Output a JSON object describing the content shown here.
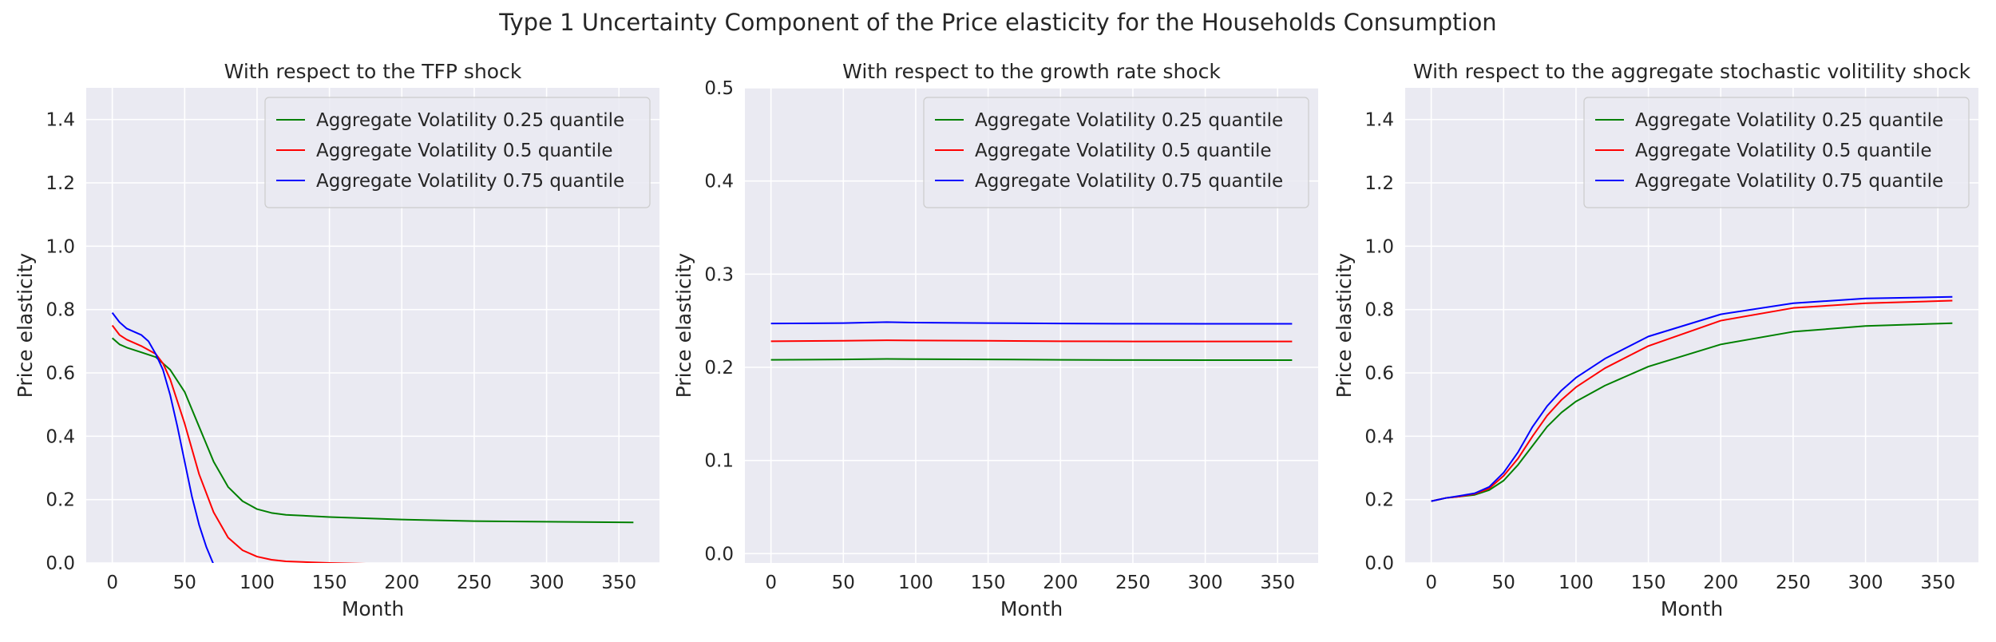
{
  "figure": {
    "suptitle": "Type 1 Uncertainty Component of the Price elasticity for the Households Consumption"
  },
  "style": {
    "plot_bg": "#eaeaf2",
    "grid_color": "#ffffff",
    "text_color": "#262626",
    "legend_bg": "#eaeaf2",
    "legend_border": "#cccccc"
  },
  "chart_data": [
    {
      "type": "line",
      "title": "With respect to the TFP shock",
      "xlabel": "Month",
      "ylabel": "Price elasticity",
      "xlim": [
        -18,
        378
      ],
      "ylim": [
        0,
        1.5
      ],
      "xticks": [
        0,
        50,
        100,
        150,
        200,
        250,
        300,
        350
      ],
      "yticks": [
        0.0,
        0.2,
        0.4,
        0.6,
        0.8,
        1.0,
        1.2,
        1.4
      ],
      "ytick_labels": [
        "0.0",
        "0.2",
        "0.4",
        "0.6",
        "0.8",
        "1.0",
        "1.2",
        "1.4"
      ],
      "grid": true,
      "legend": "top-right",
      "series": [
        {
          "name": "Aggregate Volatility 0.25 quantile",
          "color": "#008000",
          "x": [
            0,
            5,
            10,
            20,
            30,
            40,
            50,
            60,
            70,
            80,
            90,
            100,
            110,
            120,
            150,
            200,
            250,
            300,
            360
          ],
          "y": [
            0.71,
            0.69,
            0.68,
            0.665,
            0.65,
            0.61,
            0.54,
            0.43,
            0.32,
            0.24,
            0.195,
            0.17,
            0.158,
            0.152,
            0.145,
            0.137,
            0.132,
            0.13,
            0.128
          ]
        },
        {
          "name": "Aggregate Volatility 0.5 quantile",
          "color": "#ff0000",
          "x": [
            0,
            5,
            10,
            20,
            30,
            35,
            40,
            50,
            60,
            70,
            80,
            90,
            100,
            110,
            120,
            150,
            200
          ],
          "y": [
            0.75,
            0.72,
            0.705,
            0.685,
            0.66,
            0.63,
            0.58,
            0.44,
            0.28,
            0.16,
            0.08,
            0.04,
            0.02,
            0.01,
            0.005,
            0.0,
            -0.005
          ]
        },
        {
          "name": "Aggregate Volatility 0.75 quantile",
          "color": "#0000ff",
          "x": [
            0,
            5,
            10,
            20,
            25,
            30,
            35,
            40,
            45,
            50,
            55,
            60,
            65,
            70
          ],
          "y": [
            0.79,
            0.76,
            0.74,
            0.72,
            0.7,
            0.66,
            0.61,
            0.53,
            0.43,
            0.32,
            0.21,
            0.12,
            0.05,
            -0.005
          ]
        }
      ]
    },
    {
      "type": "line",
      "title": "With respect to the growth rate shock",
      "xlabel": "Month",
      "ylabel": "Price elasticity",
      "xlim": [
        -18,
        378
      ],
      "ylim": [
        -0.01,
        0.5
      ],
      "xticks": [
        0,
        50,
        100,
        150,
        200,
        250,
        300,
        350
      ],
      "yticks": [
        0.0,
        0.1,
        0.2,
        0.3,
        0.4,
        0.5
      ],
      "ytick_labels": [
        "0.0",
        "0.1",
        "0.2",
        "0.3",
        "0.4",
        "0.5"
      ],
      "grid": true,
      "legend": "top-right",
      "series": [
        {
          "name": "Aggregate Volatility 0.25 quantile",
          "color": "#008000",
          "x": [
            0,
            50,
            80,
            100,
            150,
            200,
            250,
            300,
            360
          ],
          "y": [
            0.208,
            0.2085,
            0.209,
            0.2088,
            0.2085,
            0.208,
            0.2078,
            0.2077,
            0.2077
          ]
        },
        {
          "name": "Aggregate Volatility 0.5 quantile",
          "color": "#ff0000",
          "x": [
            0,
            50,
            80,
            100,
            150,
            200,
            250,
            300,
            360
          ],
          "y": [
            0.228,
            0.2285,
            0.229,
            0.2288,
            0.2285,
            0.228,
            0.2278,
            0.2277,
            0.2277
          ]
        },
        {
          "name": "Aggregate Volatility 0.75 quantile",
          "color": "#0000ff",
          "x": [
            0,
            50,
            80,
            100,
            150,
            200,
            250,
            300,
            360
          ],
          "y": [
            0.247,
            0.2475,
            0.2485,
            0.248,
            0.2475,
            0.247,
            0.2468,
            0.2467,
            0.2467
          ]
        }
      ]
    },
    {
      "type": "line",
      "title": "With respect to the aggregate stochastic volitility shock",
      "xlabel": "Month",
      "ylabel": "Price elasticity",
      "xlim": [
        -18,
        378
      ],
      "ylim": [
        0,
        1.5
      ],
      "xticks": [
        0,
        50,
        100,
        150,
        200,
        250,
        300,
        350
      ],
      "yticks": [
        0.0,
        0.2,
        0.4,
        0.6,
        0.8,
        1.0,
        1.2,
        1.4
      ],
      "ytick_labels": [
        "0.0",
        "0.2",
        "0.4",
        "0.6",
        "0.8",
        "1.0",
        "1.2",
        "1.4"
      ],
      "grid": true,
      "legend": "top-right",
      "series": [
        {
          "name": "Aggregate Volatility 0.25 quantile",
          "color": "#008000",
          "x": [
            0,
            10,
            20,
            30,
            40,
            50,
            60,
            70,
            80,
            90,
            100,
            120,
            150,
            200,
            250,
            300,
            360
          ],
          "y": [
            0.195,
            0.205,
            0.21,
            0.215,
            0.23,
            0.26,
            0.31,
            0.37,
            0.43,
            0.475,
            0.51,
            0.56,
            0.62,
            0.69,
            0.73,
            0.748,
            0.757
          ]
        },
        {
          "name": "Aggregate Volatility 0.5 quantile",
          "color": "#ff0000",
          "x": [
            0,
            10,
            20,
            30,
            40,
            50,
            60,
            70,
            80,
            90,
            100,
            120,
            150,
            200,
            250,
            300,
            360
          ],
          "y": [
            0.195,
            0.205,
            0.21,
            0.218,
            0.235,
            0.275,
            0.33,
            0.4,
            0.465,
            0.515,
            0.555,
            0.615,
            0.685,
            0.765,
            0.805,
            0.82,
            0.828
          ]
        },
        {
          "name": "Aggregate Volatility 0.75 quantile",
          "color": "#0000ff",
          "x": [
            0,
            10,
            20,
            30,
            40,
            50,
            60,
            70,
            80,
            90,
            100,
            120,
            150,
            200,
            250,
            300,
            360
          ],
          "y": [
            0.195,
            0.205,
            0.212,
            0.22,
            0.24,
            0.285,
            0.35,
            0.43,
            0.495,
            0.545,
            0.585,
            0.645,
            0.715,
            0.785,
            0.82,
            0.835,
            0.84
          ]
        }
      ]
    }
  ]
}
